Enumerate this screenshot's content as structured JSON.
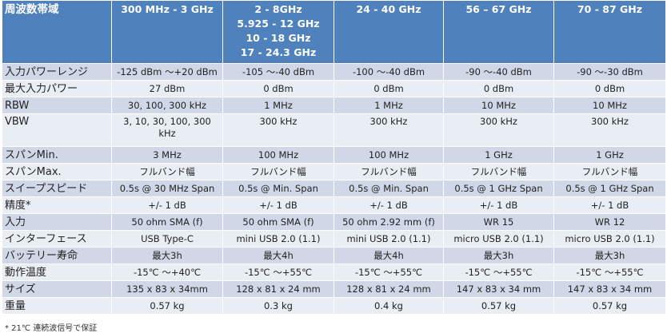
{
  "table": {
    "header": [
      [
        "周波数帯域"
      ],
      [
        "300 MHz - 3 GHz"
      ],
      [
        "2 - 8GHz",
        "5.925 - 12 GHz",
        "10 - 18 GHz",
        "17 - 24.3 GHz"
      ],
      [
        "24 - 40 GHz"
      ],
      [
        "56 – 67 GHz"
      ],
      [
        "70 - 87 GHz"
      ]
    ],
    "rows": [
      [
        "入力パワーレンジ",
        "-125 dBm 〜+20 dBm",
        "-105 〜-40 dBm",
        "-100 〜-40 dBm",
        "-90 〜-40 dBm",
        "-90 〜-30 dBm"
      ],
      [
        "最大入力パワー",
        "27 dBm",
        "0 dBm",
        "0 dBm",
        "0 dBm",
        "0 dBm"
      ],
      [
        "RBW",
        "30, 100, 300 kHz",
        "1 MHz",
        "1 MHz",
        "10 MHz",
        "10 MHz"
      ],
      [
        "VBW",
        "3, 10, 30, 100, 300 kHz",
        "300 kHz",
        "300 kHz",
        "300 kHz",
        "300 kHz"
      ],
      [
        "スパンMin.",
        "3 MHz",
        "100 MHz",
        "100 MHz",
        "1 GHz",
        "1 GHz"
      ],
      [
        "スパンMax.",
        "フルバンド幅",
        "フルバンド幅",
        "フルバンド幅",
        "フルバンド幅",
        "フルバンド幅"
      ],
      [
        "スイープスピード",
        "0.5s @ 30 MHz Span",
        "0.5s @ Min. Span",
        "0.5s @ Min. Span",
        "0.5s @ 1 GHz Span",
        "0.5s @ 1 GHz Span"
      ],
      [
        "精度*",
        "+/- 1 dB",
        "+/- 1 dB",
        "+/- 1 dB",
        "+/- 1 dB",
        "+/- 1 dB"
      ],
      [
        "入力",
        "50 ohm SMA (f)",
        "50 ohm SMA (f)",
        "50 ohm 2.92 mm (f)",
        "WR 15",
        "WR 12"
      ],
      [
        "インターフェース",
        "USB Type-C",
        "mini USB 2.0 (1.1)",
        "mini USB 2.0 (1.1)",
        "micro USB 2.0 (1.1)",
        "micro USB 2.0 (1.1)"
      ],
      [
        "バッテリー寿命",
        "最大3h",
        "最大4h",
        "最大4h",
        "最大3h",
        "最大3h"
      ],
      [
        "動作温度",
        "-15℃ 〜+40℃",
        "-15℃ 〜+55℃",
        "-15℃ 〜+55℃",
        "-15℃ 〜+55℃",
        "-15℃ 〜+55℃"
      ],
      [
        "サイズ",
        "135 x 83 x 34mm",
        "128 x 81 x 24 mm",
        "128 x 81 x 24 mm",
        "147 x 83 x 34 mm",
        "147 x 83 x 34 mm"
      ],
      [
        "重量",
        "0.57 kg",
        "0.3 kg",
        "0.4 kg",
        "0.57 kg",
        "0.57 kg"
      ]
    ],
    "footnote": "* 21℃ 連続波信号で保証"
  }
}
